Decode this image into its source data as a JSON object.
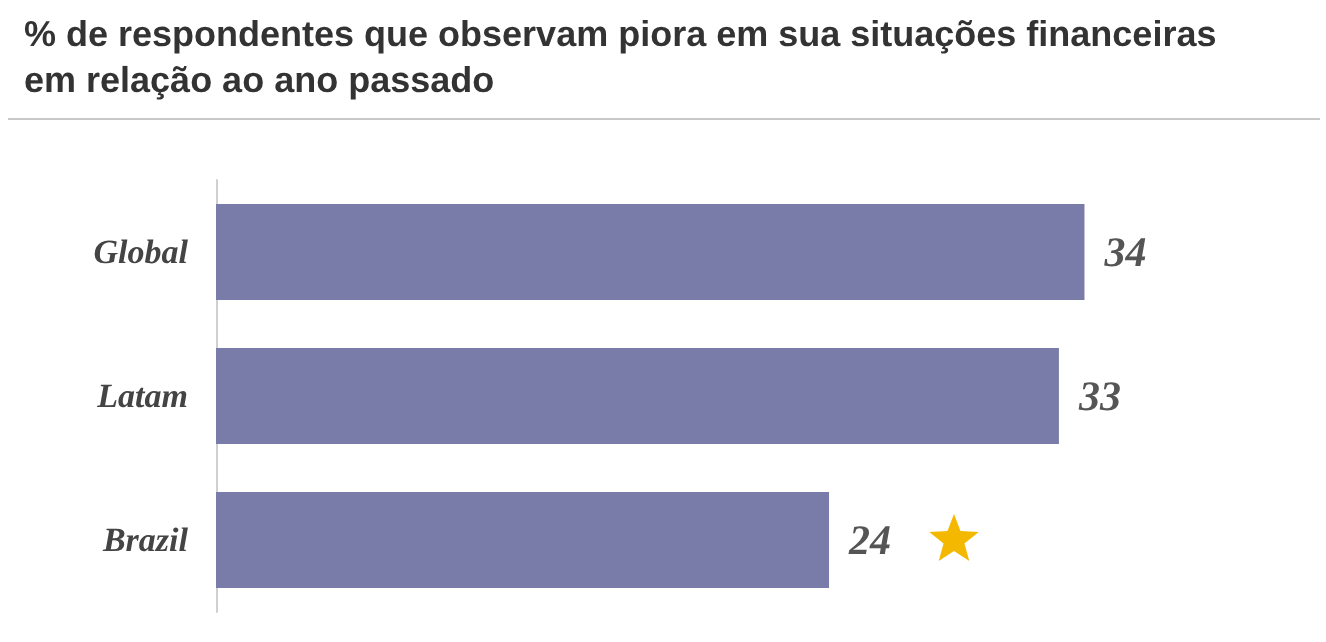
{
  "chart_data": {
    "type": "bar",
    "title": "% de respondentes que observam piora em sua situações financeiras em relação ao ano passado",
    "orientation": "horizontal",
    "categories": [
      "Global",
      "Latam",
      "Brazil"
    ],
    "values": [
      34,
      33,
      24
    ],
    "color": "#797ba9",
    "data_labels": true,
    "tick_labels": "y"
  }
}
